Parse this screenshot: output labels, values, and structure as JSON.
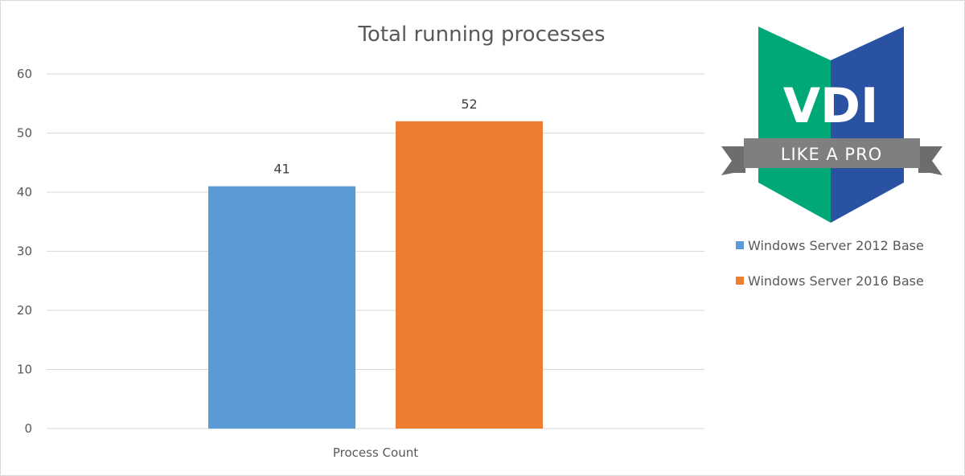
{
  "chart_data": {
    "type": "bar",
    "title": "Total running processes",
    "categories": [
      "Process Count"
    ],
    "series": [
      {
        "name": "Windows Server 2012 Base",
        "values": [
          41
        ],
        "color": "#5b9bd5"
      },
      {
        "name": "Windows Server 2016 Base",
        "values": [
          52
        ],
        "color": "#ed7d31"
      }
    ],
    "ylim": [
      0,
      60
    ],
    "yticks": [
      0,
      10,
      20,
      30,
      40,
      50,
      60
    ],
    "grid": true,
    "data_labels": true,
    "legend_position": "right"
  },
  "logo": {
    "text_main": "VDI",
    "text_ribbon": "LIKE A PRO",
    "green": "#00a878",
    "blue": "#2a52a3",
    "ribbon": "#7f7f7f"
  }
}
